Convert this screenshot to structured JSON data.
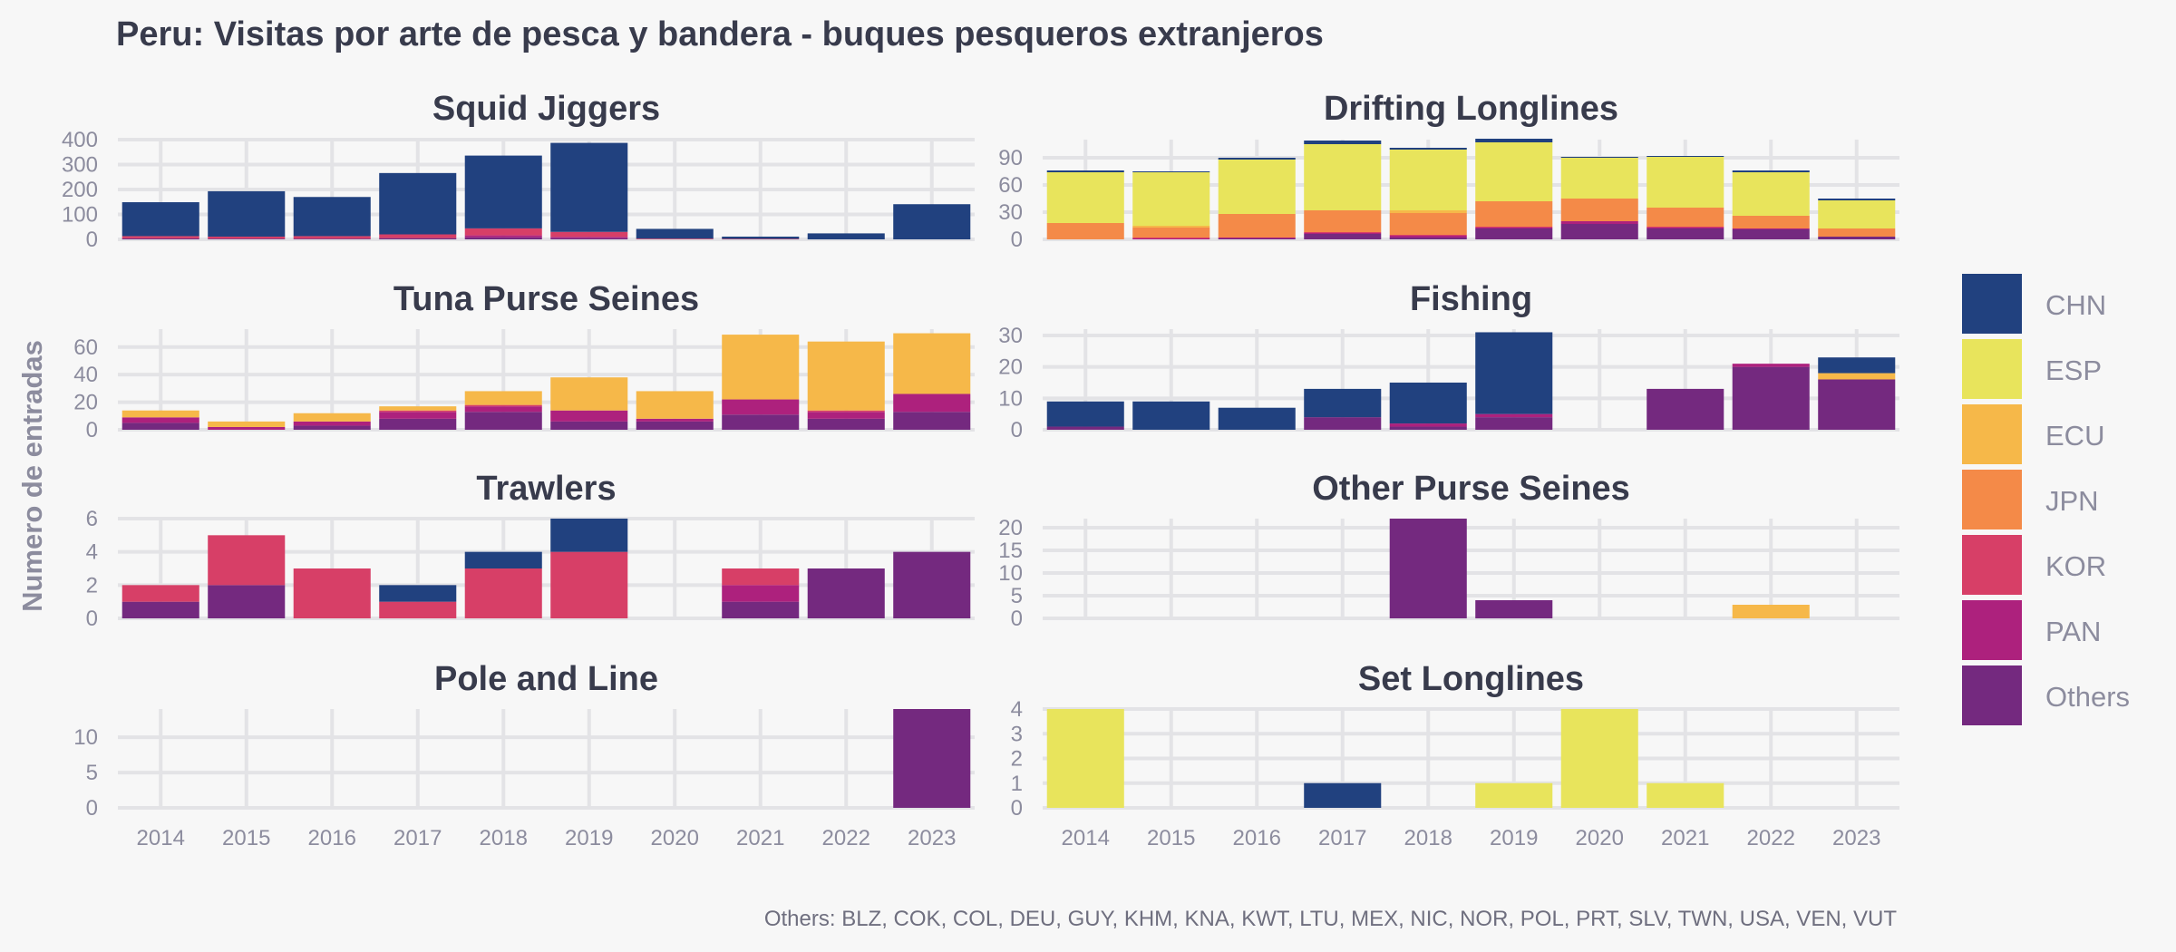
{
  "title": "Peru: Visitas por arte de pesca y bandera - buques pesqueros extranjeros",
  "ylabel": "Numero de entradas",
  "caption": "Others: BLZ, COK, COL, DEU, GUY, KHM, KNA, KWT, LTU, MEX, NIC, NOR, POL, PRT, SLV, TWN, USA, VEN, VUT",
  "colors": {
    "CHN": "#21417f",
    "ESP": "#e8e45c",
    "ECU": "#f6b849",
    "JPN": "#f48a48",
    "KOR": "#d73f67",
    "PAN": "#ad217d",
    "Others": "#74297f"
  },
  "chart_data": {
    "type": "bar",
    "stacked": true,
    "categories": [
      "2014",
      "2015",
      "2016",
      "2017",
      "2018",
      "2019",
      "2020",
      "2021",
      "2022",
      "2023"
    ],
    "legend": {
      "position": "right",
      "entries": [
        "CHN",
        "ESP",
        "ECU",
        "JPN",
        "KOR",
        "PAN",
        "Others"
      ]
    },
    "facets": [
      {
        "title": "Squid Jiggers",
        "ylim": [
          0,
          400
        ],
        "yticks": [
          0,
          100,
          200,
          300,
          400
        ],
        "series": [
          {
            "name": "Others",
            "values": [
              4,
              3,
              3,
              5,
              8,
              5,
              0,
              0,
              0,
              0
            ]
          },
          {
            "name": "PAN",
            "values": [
              0,
              0,
              0,
              0,
              8,
              5,
              0,
              0,
              0,
              0
            ]
          },
          {
            "name": "KOR",
            "values": [
              9,
              8,
              10,
              15,
              28,
              20,
              3,
              2,
              0,
              0
            ]
          },
          {
            "name": "CHN",
            "values": [
              136,
              182,
              157,
              246,
              292,
              357,
              39,
              9,
              24,
              141
            ]
          }
        ]
      },
      {
        "title": "Drifting Longlines",
        "ylim": [
          0,
          110
        ],
        "yticks": [
          0,
          30,
          60,
          90
        ],
        "series": [
          {
            "name": "Others",
            "values": [
              0,
              0,
              1,
              6,
              2,
              12,
              17,
              12,
              11,
              3
            ]
          },
          {
            "name": "PAN",
            "values": [
              0,
              1,
              1,
              1,
              2,
              1,
              3,
              1,
              1,
              0
            ]
          },
          {
            "name": "KOR",
            "values": [
              0,
              1,
              0,
              1,
              1,
              1,
              0,
              1,
              0,
              0
            ]
          },
          {
            "name": "JPN",
            "values": [
              18,
              11,
              26,
              24,
              24,
              28,
              25,
              21,
              14,
              9
            ]
          },
          {
            "name": "ECU",
            "values": [
              0,
              2,
              0,
              0,
              3,
              0,
              0,
              0,
              0,
              0
            ]
          },
          {
            "name": "ESP",
            "values": [
              56,
              59,
              60,
              73,
              67,
              65,
              45,
              56,
              48,
              31
            ]
          },
          {
            "name": "CHN",
            "values": [
              2,
              1,
              2,
              4,
              2,
              4,
              1,
              1,
              2,
              2
            ]
          }
        ]
      },
      {
        "title": "Tuna Purse Seines",
        "ylim": [
          0,
          73
        ],
        "yticks": [
          0,
          20,
          40,
          60
        ],
        "series": [
          {
            "name": "Others",
            "values": [
              5,
              0,
              3,
              8,
              13,
              6,
              6,
              11,
              8,
              13
            ]
          },
          {
            "name": "PAN",
            "values": [
              4,
              2,
              3,
              5,
              4,
              8,
              2,
              11,
              5,
              13
            ]
          },
          {
            "name": "KOR",
            "values": [
              0,
              0,
              0,
              1,
              1,
              0,
              0,
              0,
              1,
              0
            ]
          },
          {
            "name": "JPN",
            "values": [
              0,
              0,
              0,
              0,
              0,
              0,
              0,
              0,
              0,
              0
            ]
          },
          {
            "name": "ECU",
            "values": [
              5,
              4,
              6,
              3,
              10,
              24,
              20,
              47,
              50,
              44
            ]
          }
        ]
      },
      {
        "title": "Fishing",
        "ylim": [
          0,
          32
        ],
        "yticks": [
          0,
          10,
          20,
          30
        ],
        "series": [
          {
            "name": "Others",
            "values": [
              1,
              0,
              0,
              4,
              1,
              4,
              0,
              13,
              20,
              16
            ]
          },
          {
            "name": "PAN",
            "values": [
              0,
              0,
              0,
              0,
              1,
              1,
              0,
              0,
              1,
              0
            ]
          },
          {
            "name": "ECU",
            "values": [
              0,
              0,
              0,
              0,
              0,
              0,
              0,
              0,
              0,
              2
            ]
          },
          {
            "name": "CHN",
            "values": [
              8,
              9,
              7,
              9,
              13,
              26,
              0,
              0,
              0,
              5
            ]
          }
        ]
      },
      {
        "title": "Trawlers",
        "ylim": [
          0,
          6
        ],
        "yticks": [
          0,
          2,
          4,
          6
        ],
        "series": [
          {
            "name": "Others",
            "values": [
              1,
              2,
              0,
              0,
              0,
              0,
              0,
              1,
              3,
              4
            ]
          },
          {
            "name": "PAN",
            "values": [
              0,
              0,
              0,
              0,
              0,
              0,
              0,
              1,
              0,
              0
            ]
          },
          {
            "name": "KOR",
            "values": [
              1,
              3,
              3,
              1,
              3,
              4,
              0,
              1,
              0,
              0
            ]
          },
          {
            "name": "CHN",
            "values": [
              0,
              0,
              0,
              1,
              1,
              2,
              0,
              0,
              0,
              0
            ]
          }
        ]
      },
      {
        "title": "Other Purse Seines",
        "ylim": [
          0,
          22
        ],
        "yticks": [
          0,
          5,
          10,
          15,
          20
        ],
        "series": [
          {
            "name": "Others",
            "values": [
              0,
              0,
              0,
              0,
              22,
              4,
              0,
              0,
              0,
              0
            ]
          },
          {
            "name": "ECU",
            "values": [
              0,
              0,
              0,
              0,
              0,
              0,
              0,
              0,
              3,
              0
            ]
          }
        ]
      },
      {
        "title": "Pole and Line",
        "ylim": [
          0,
          14
        ],
        "yticks": [
          0,
          5,
          10
        ],
        "series": [
          {
            "name": "Others",
            "values": [
              0,
              0,
              0,
              0,
              0,
              0,
              0,
              0,
              0,
              14
            ]
          }
        ]
      },
      {
        "title": "Set Longlines",
        "ylim": [
          0,
          4
        ],
        "yticks": [
          0,
          1,
          2,
          3,
          4
        ],
        "series": [
          {
            "name": "ESP",
            "values": [
              4,
              0,
              0,
              0,
              0,
              1,
              4,
              1,
              0,
              0
            ]
          },
          {
            "name": "CHN",
            "values": [
              0,
              0,
              0,
              1,
              0,
              0,
              0,
              0,
              0,
              0
            ]
          }
        ]
      }
    ]
  }
}
